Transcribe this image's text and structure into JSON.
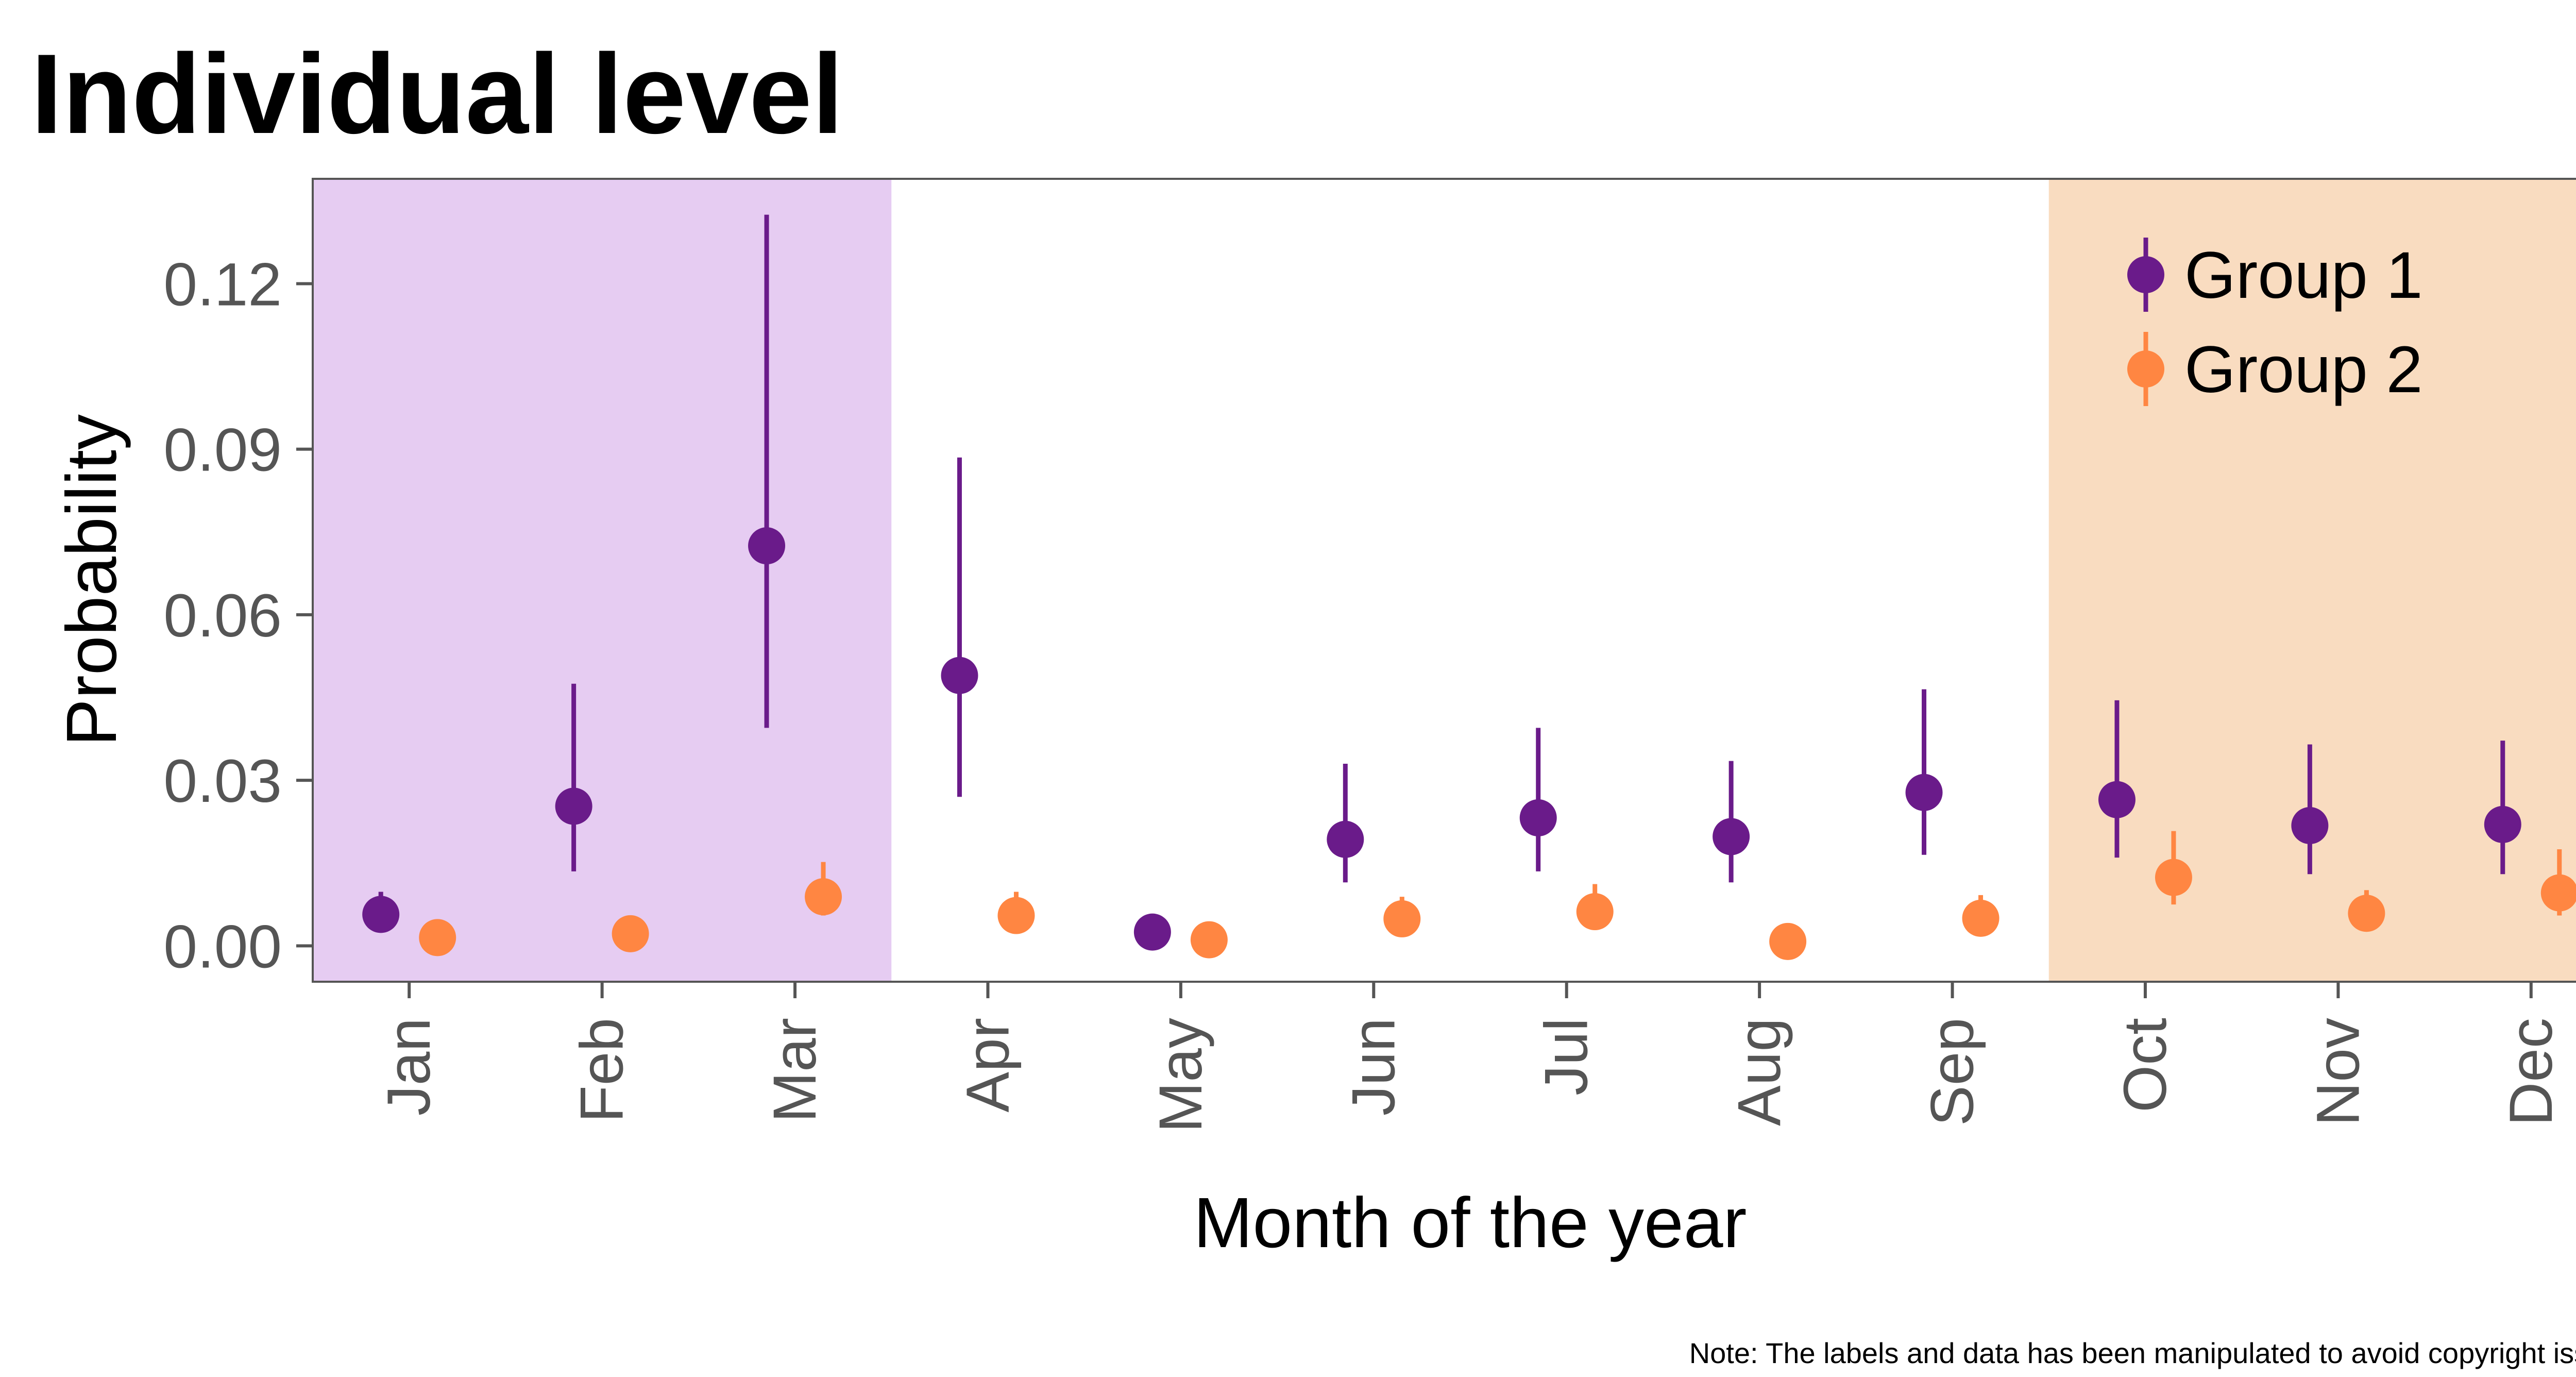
{
  "chart_data": {
    "type": "scatter",
    "title": "Individual level",
    "xlabel": "Month of the year",
    "ylabel": "Probability",
    "note": "Note: The labels and data has been manipulated to avoid copyright issues.",
    "categories": [
      "Jan",
      "Feb",
      "Mar",
      "Apr",
      "May",
      "Jun",
      "Jul",
      "Aug",
      "Sep",
      "Oct",
      "Nov",
      "Dec"
    ],
    "ylim": [
      -0.0065,
      0.139
    ],
    "yticks": [
      0.0,
      0.03,
      0.06,
      0.09,
      0.12
    ],
    "ytick_labels": [
      "0.00",
      "0.03",
      "0.06",
      "0.09",
      "0.12"
    ],
    "grid": false,
    "legend_position": "top-right",
    "highlight_bands": [
      {
        "from": "Jan",
        "to": "Mar",
        "color": "#e6ccf2"
      },
      {
        "from": "Oct",
        "to": "Dec",
        "color": "#f9dcc0"
      }
    ],
    "series": [
      {
        "name": "Group 1",
        "color": "#6a1b8a",
        "values": [
          0.0057,
          0.0253,
          0.0725,
          0.049,
          0.0025,
          0.0193,
          0.0232,
          0.0198,
          0.0278,
          0.0265,
          0.0218,
          0.022
        ],
        "lower": [
          0.0035,
          0.0135,
          0.0395,
          0.027,
          0.0012,
          0.0115,
          0.0135,
          0.0115,
          0.0165,
          0.016,
          0.013,
          0.013
        ],
        "upper": [
          0.0098,
          0.0475,
          0.1325,
          0.0885,
          0.0055,
          0.033,
          0.0395,
          0.0335,
          0.0465,
          0.0445,
          0.0365,
          0.0372
        ]
      },
      {
        "name": "Group 2",
        "color": "#ff8642",
        "values": [
          0.0015,
          0.0022,
          0.0089,
          0.0055,
          0.0011,
          0.0049,
          0.0062,
          0.0008,
          0.005,
          0.0124,
          0.0059,
          0.0096
        ],
        "lower": [
          0.0006,
          0.0011,
          0.0055,
          0.0032,
          0.0004,
          0.0028,
          0.0038,
          0.0003,
          0.003,
          0.0075,
          0.0036,
          0.0055
        ],
        "upper": [
          0.0032,
          0.0042,
          0.0152,
          0.0098,
          0.0024,
          0.0089,
          0.0112,
          0.0022,
          0.0092,
          0.0208,
          0.0101,
          0.0175
        ]
      }
    ]
  }
}
